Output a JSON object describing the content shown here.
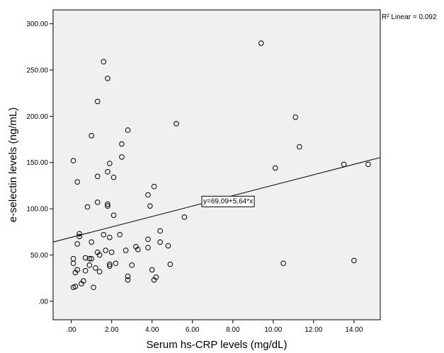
{
  "chart_data": {
    "type": "scatter",
    "xlabel": "Serum hs-CRP levels (mg/dL)",
    "ylabel": "e-selectin levels (ng/mL)",
    "xlim": [
      -0.9,
      15.3
    ],
    "ylim": [
      -20,
      315
    ],
    "x_ticks": [
      0,
      2,
      4,
      6,
      8,
      10,
      12,
      14
    ],
    "x_tick_labels": [
      ".00",
      "2.00",
      "4.00",
      "6.00",
      "8.00",
      "10.00",
      "12.00",
      "14.00"
    ],
    "y_ticks": [
      0,
      50,
      100,
      150,
      200,
      250,
      300
    ],
    "y_tick_labels": [
      ".00",
      "50.00",
      "100.00",
      "150.00",
      "200.00",
      "250.00",
      "300.00"
    ],
    "grid": false,
    "r2_label": "R² Linear = 0.092",
    "fit_line": {
      "equation_label": "y=69,09+5,64*x",
      "intercept": 69.09,
      "slope": 5.64,
      "label_at": [
        6.5,
        109
      ]
    },
    "background_color": "#f0f0f0",
    "marker_color": "#000000",
    "points": [
      [
        0.1,
        152
      ],
      [
        0.3,
        129
      ],
      [
        1.0,
        179
      ],
      [
        1.3,
        216
      ],
      [
        1.6,
        259
      ],
      [
        1.8,
        241
      ],
      [
        2.8,
        185
      ],
      [
        2.5,
        170
      ],
      [
        2.5,
        156
      ],
      [
        1.9,
        149
      ],
      [
        1.8,
        140
      ],
      [
        1.3,
        135
      ],
      [
        2.1,
        134
      ],
      [
        1.3,
        107
      ],
      [
        1.8,
        105
      ],
      [
        1.8,
        103
      ],
      [
        0.8,
        102
      ],
      [
        2.1,
        93
      ],
      [
        3.8,
        115
      ],
      [
        4.1,
        124
      ],
      [
        3.9,
        103
      ],
      [
        5.2,
        192
      ],
      [
        5.6,
        91
      ],
      [
        0.4,
        73
      ],
      [
        0.4,
        70
      ],
      [
        0.3,
        62
      ],
      [
        1.0,
        64
      ],
      [
        1.6,
        72
      ],
      [
        1.9,
        69
      ],
      [
        2.4,
        72
      ],
      [
        1.7,
        55
      ],
      [
        1.3,
        53
      ],
      [
        2.0,
        53
      ],
      [
        1.4,
        50
      ],
      [
        0.7,
        47
      ],
      [
        0.9,
        46
      ],
      [
        1.0,
        46
      ],
      [
        0.1,
        46
      ],
      [
        0.1,
        41
      ],
      [
        2.7,
        55
      ],
      [
        3.2,
        59
      ],
      [
        3.3,
        56
      ],
      [
        3.8,
        58
      ],
      [
        3.8,
        67
      ],
      [
        4.4,
        76
      ],
      [
        4.4,
        64
      ],
      [
        4.8,
        60
      ],
      [
        0.3,
        34
      ],
      [
        0.7,
        33
      ],
      [
        0.2,
        31
      ],
      [
        0.9,
        39
      ],
      [
        1.2,
        36
      ],
      [
        1.4,
        32
      ],
      [
        1.9,
        40
      ],
      [
        1.9,
        38
      ],
      [
        2.2,
        41
      ],
      [
        3.0,
        39
      ],
      [
        0.6,
        22
      ],
      [
        0.5,
        19
      ],
      [
        2.8,
        27
      ],
      [
        2.8,
        23
      ],
      [
        4.0,
        34
      ],
      [
        4.1,
        23
      ],
      [
        4.2,
        26
      ],
      [
        4.9,
        40
      ],
      [
        0.1,
        15
      ],
      [
        0.2,
        16
      ],
      [
        1.1,
        15
      ],
      [
        9.4,
        279
      ],
      [
        11.1,
        199
      ],
      [
        11.3,
        167
      ],
      [
        10.1,
        144
      ],
      [
        13.5,
        148
      ],
      [
        14.7,
        148
      ],
      [
        10.5,
        41
      ],
      [
        14.0,
        44
      ]
    ]
  }
}
